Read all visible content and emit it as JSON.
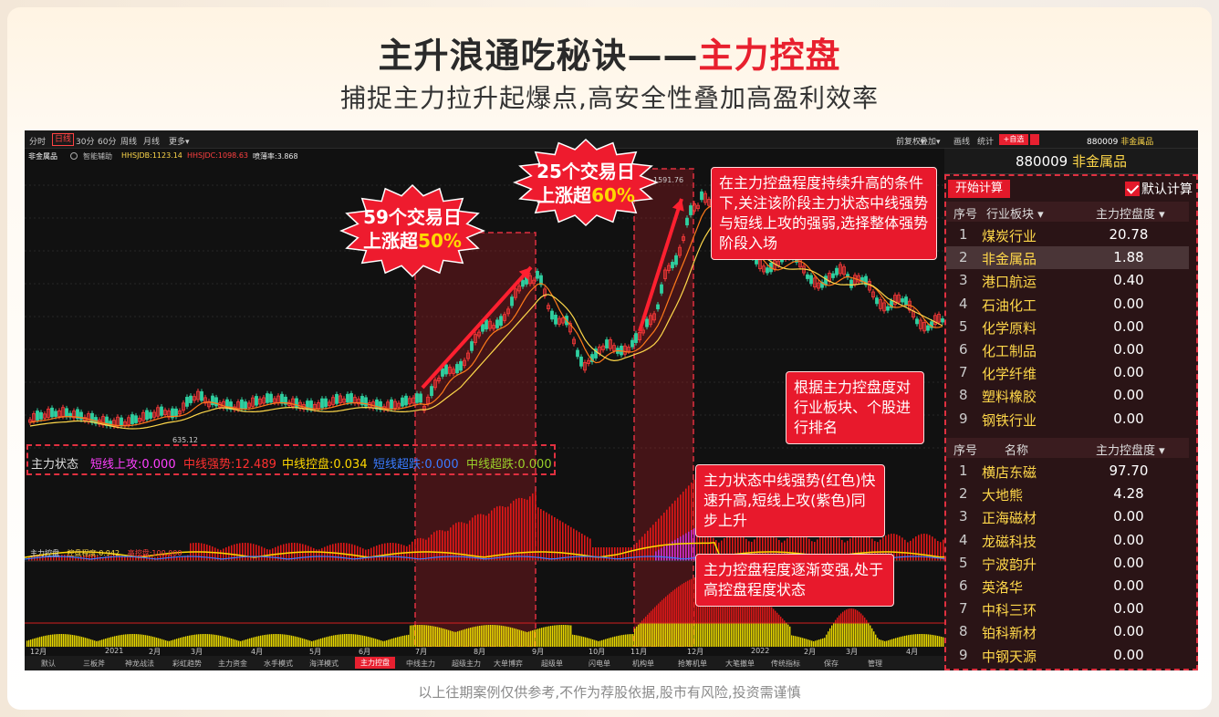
{
  "headline": {
    "main": "主升浪通吃秘诀——",
    "accent": "主力控盘"
  },
  "subline": "捕捉主力拉升起爆点,高安全性叠加高盈利效率",
  "footer": "以上往期案例仅供参考,不作为荐股依据,股市有风险,投资需谨慎",
  "toolbar": {
    "timeframes": [
      "分时",
      "日线",
      "30分",
      "60分",
      "周线",
      "月线",
      "更多▾"
    ],
    "active_timeframe": "日线",
    "right_tools": [
      "前复权▾",
      "叠加▾",
      "画线",
      "统计"
    ],
    "add_watch": "+自选",
    "code": "880009",
    "name": "非金属品"
  },
  "infobar": {
    "stock": "非金属品",
    "assist": "智能辅助",
    "hhsjdb": "HHSJDB:1123.14",
    "hhsjdc": "HHSJDC:1098.63",
    "ratio": "喷薄率:3.868"
  },
  "chart_labels": {
    "high": "1591.76",
    "low": "635.12"
  },
  "indicator_bar": {
    "label": "主力状态",
    "items": [
      {
        "text": "短线上攻:0.000",
        "color": "#ff40ff"
      },
      {
        "text": "中线强势:12.489",
        "color": "#ff3030"
      },
      {
        "text": "中线控盘:0.034",
        "color": "#ffd800"
      },
      {
        "text": "短线超跌:0.000",
        "color": "#3a7bff"
      },
      {
        "text": "中线超跌:0.000",
        "color": "#9ad02a"
      }
    ]
  },
  "pane2": {
    "label": "主力控盘",
    "degree": "控盘程度:0.942",
    "line": "高控盘:100.000"
  },
  "xaxis": [
    "12月",
    "2021",
    "2月",
    "3月",
    "4月",
    "5月",
    "6月",
    "7月",
    "8月",
    "9月",
    "10月",
    "11月",
    "12月",
    "2022",
    "2月",
    "3月",
    "4月"
  ],
  "tabs": [
    "默认",
    "三板斧",
    "神龙战法",
    "彩虹趋势",
    "主力资金",
    "水手模式",
    "海洋模式",
    "主力控盘",
    "中线主力",
    "超级主力",
    "大单博弈",
    "超级单",
    "闪电单",
    "机构单",
    "抢筹机单",
    "大笔撤单",
    "传统指标",
    "保存",
    "管理"
  ],
  "active_tab": "主力控盘",
  "right_panel": {
    "title_code": "880009",
    "title_name": "非金属品",
    "calc_button": "开始计算",
    "default_calc": "默认计算",
    "sector_header": {
      "idx": "序号",
      "name": "行业板块 ▾",
      "value": "主力控盘度 ▾"
    },
    "sectors": [
      {
        "idx": "1",
        "name": "煤炭行业",
        "value": "20.78"
      },
      {
        "idx": "2",
        "name": "非金属品",
        "value": "1.88"
      },
      {
        "idx": "3",
        "name": "港口航运",
        "value": "0.40"
      },
      {
        "idx": "4",
        "name": "石油化工",
        "value": "0.00"
      },
      {
        "idx": "5",
        "name": "化学原料",
        "value": "0.00"
      },
      {
        "idx": "6",
        "name": "化工制品",
        "value": "0.00"
      },
      {
        "idx": "7",
        "name": "化学纤维",
        "value": "0.00"
      },
      {
        "idx": "8",
        "name": "塑料橡胶",
        "value": "0.00"
      },
      {
        "idx": "9",
        "name": "钢铁行业",
        "value": "0.00"
      }
    ],
    "stock_header": {
      "idx": "序号",
      "name": "名称",
      "value": "主力控盘度 ▾"
    },
    "stocks": [
      {
        "idx": "1",
        "name": "横店东磁",
        "value": "97.70"
      },
      {
        "idx": "2",
        "name": "大地熊",
        "value": "4.28"
      },
      {
        "idx": "3",
        "name": "正海磁材",
        "value": "0.00"
      },
      {
        "idx": "4",
        "name": "龙磁科技",
        "value": "0.00"
      },
      {
        "idx": "5",
        "name": "宁波韵升",
        "value": "0.00"
      },
      {
        "idx": "6",
        "name": "英洛华",
        "value": "0.00"
      },
      {
        "idx": "7",
        "name": "中科三环",
        "value": "0.00"
      },
      {
        "idx": "8",
        "name": "铂科新材",
        "value": "0.00"
      },
      {
        "idx": "9",
        "name": "中钢天源",
        "value": "0.00"
      }
    ]
  },
  "bursts": [
    {
      "line1": "59个交易日",
      "line2a": "上涨超",
      "line2b": "50%"
    },
    {
      "line1": "25个交易日",
      "line2a": "上涨超",
      "line2b": "60%"
    }
  ],
  "callouts": {
    "c1": "在主力控盘程度持续升高的条件下,关注该阶段主力状态中线强势与短线上攻的强弱,选择整体强势阶段入场",
    "c2": "根据主力控盘度对行业板块、个股进行排名",
    "c3": "主力状态中线强势(红色)快速升高,短线上攻(紫色)同步上升",
    "c4": "主力控盘程度逐渐变强,处于高控盘程度状态"
  }
}
